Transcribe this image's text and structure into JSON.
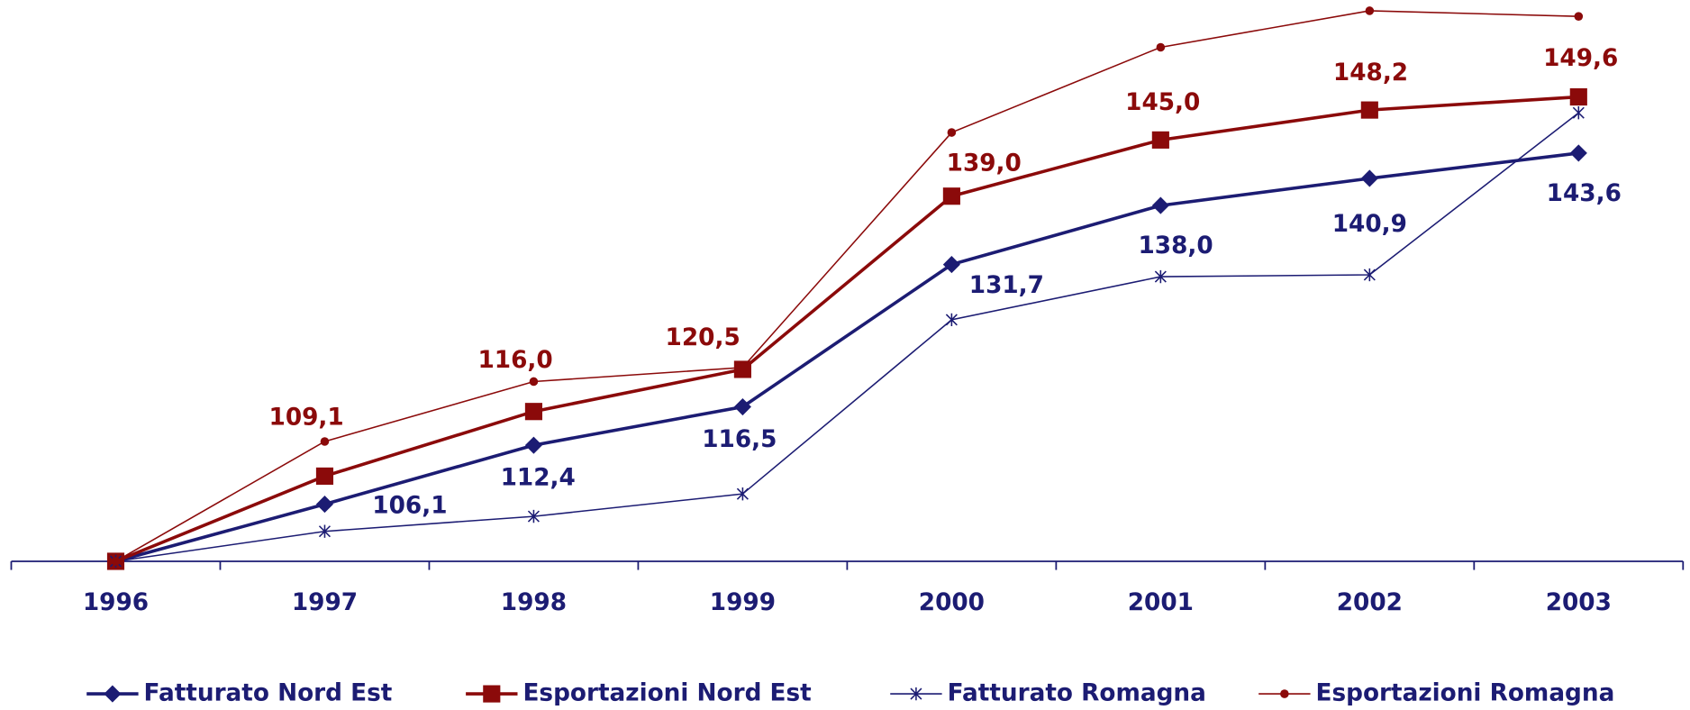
{
  "chart_data": {
    "type": "line",
    "categories": [
      "1996",
      "1997",
      "1998",
      "1999",
      "2000",
      "2001",
      "2002",
      "2003"
    ],
    "series": [
      {
        "name": "Fatturato Nord Est",
        "color": "#1c1c73",
        "marker": "diamond",
        "line_width": 3,
        "values": [
          100,
          106.1,
          112.4,
          116.5,
          131.7,
          138.0,
          140.9,
          143.6
        ],
        "value_labels": [
          null,
          "106,1",
          "112,4",
          "116,5",
          "131,7",
          "138,0",
          "140,9",
          "143,6"
        ]
      },
      {
        "name": "Esportazioni Nord Est",
        "color": "#8b0a0a",
        "marker": "square",
        "line_width": 3,
        "values": [
          100,
          109.1,
          116.0,
          120.5,
          139.0,
          145.0,
          148.2,
          149.6
        ],
        "value_labels": [
          null,
          "109,1",
          "116,0",
          "120,5",
          "139,0",
          "145,0",
          "148,2",
          "149,6"
        ]
      },
      {
        "name": "Fatturato Romagna",
        "color": "#1c1c73",
        "marker": "star",
        "line_width": 1.3,
        "values": [
          100,
          103.2,
          104.8,
          107.2,
          125.8,
          130.4,
          130.6,
          147.9
        ]
      },
      {
        "name": "Esportazioni Romagna",
        "color": "#8b0a0a",
        "marker": "circle",
        "line_width": 1.3,
        "values": [
          100,
          112.8,
          119.2,
          120.7,
          145.8,
          154.9,
          158.8,
          158.2
        ]
      }
    ],
    "legend": "bottom"
  }
}
